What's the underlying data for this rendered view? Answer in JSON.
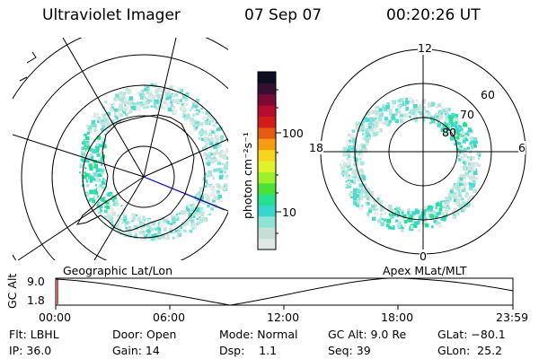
{
  "header": {
    "instrument": "Ultraviolet Imager",
    "date": "07 Sep 07",
    "time": "00:20:26 UT"
  },
  "panels": {
    "left_label": "Geographic Lat/Lon",
    "right_label": "Apex MLat/MLT"
  },
  "colorbar": {
    "label": "photon cm⁻²s⁻¹",
    "ticks": [
      "100",
      "10"
    ],
    "colors": [
      "#dfe8e5",
      "#c7ddd7",
      "#8fe3d5",
      "#38d6cf",
      "#27e08f",
      "#4ce038",
      "#9ef02c",
      "#e0f22c",
      "#f7d41e",
      "#f79a14",
      "#e35b13",
      "#d21c18",
      "#b50d2e",
      "#7c0a36",
      "#351033",
      "#0d0d24"
    ]
  },
  "mlt_dial": {
    "hours": [
      "12",
      "18",
      "6",
      "0"
    ],
    "lats": [
      "60",
      "70",
      "80"
    ]
  },
  "timeline": {
    "ylabel": "GC Alt",
    "ymax": "9.0",
    "ymin": "1.8",
    "ticks": [
      "00:00",
      "06:00",
      "12:00",
      "18:00",
      "23:59"
    ]
  },
  "status": {
    "flt": "Flt: LBHL",
    "ip": "IP: 36.0",
    "door": "Door: Open",
    "gain": "Gain: 14",
    "mode": "Mode: Normal",
    "dsp": "Dsp:    1.1",
    "gcalt": "GC Alt: 9.0 Re",
    "seq": "Seq: 39",
    "glat": "GLat: −80.1",
    "glon": "GLon:  25.2"
  }
}
